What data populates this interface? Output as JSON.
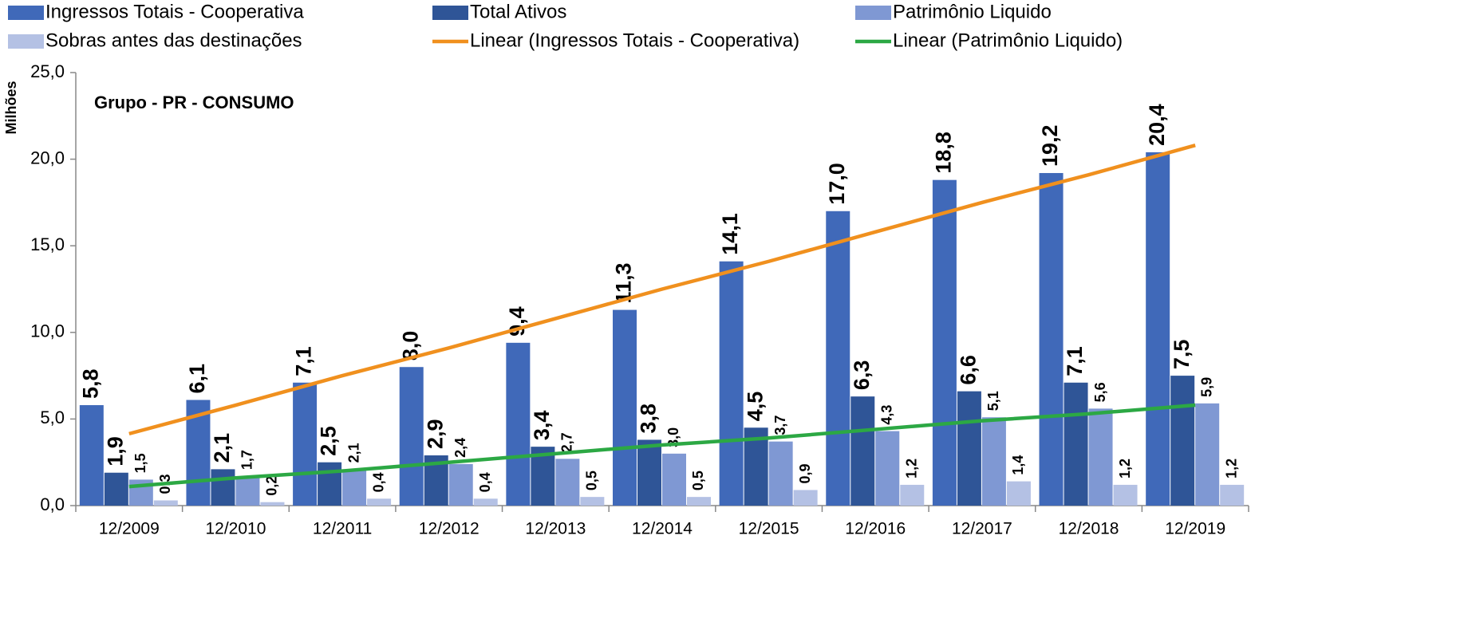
{
  "chart_data": {
    "type": "bar",
    "title": "Grupo - PR - CONSUMO",
    "y_label": "Milhões",
    "categories": [
      "12/2009",
      "12/2010",
      "12/2011",
      "12/2012",
      "12/2013",
      "12/2014",
      "12/2015",
      "12/2016",
      "12/2017",
      "12/2018",
      "12/2019"
    ],
    "series": [
      {
        "name": "Ingressos Totais - Cooperativa",
        "color": "#4069b9",
        "type": "bar",
        "values": [
          5.8,
          6.1,
          7.1,
          8.0,
          9.4,
          11.3,
          14.1,
          17.0,
          18.8,
          19.2,
          20.4
        ],
        "value_labels": [
          "5,8",
          "6,1",
          "7,1",
          "8,0",
          "9,4",
          "11,3",
          "14,1",
          "17,0",
          "18,8",
          "19,2",
          "20,4"
        ]
      },
      {
        "name": "Total Ativos",
        "color": "#2f5597",
        "type": "bar",
        "values": [
          1.9,
          2.1,
          2.5,
          2.9,
          3.4,
          3.8,
          4.5,
          6.3,
          6.6,
          7.1,
          7.5
        ],
        "value_labels": [
          "1,9",
          "2,1",
          "2,5",
          "2,9",
          "3,4",
          "3,8",
          "4,5",
          "6,3",
          "6,6",
          "7,1",
          "7,5"
        ]
      },
      {
        "name": "Patrimônio Liquido",
        "color": "#7f98d3",
        "type": "bar",
        "values": [
          1.5,
          1.7,
          2.1,
          2.4,
          2.7,
          3.0,
          3.7,
          4.3,
          5.1,
          5.6,
          5.9
        ],
        "value_labels": [
          "1,5",
          "1,7",
          "2,1",
          "2,4",
          "2,7",
          "3,0",
          "3,7",
          "4,3",
          "5,1",
          "5,6",
          "5,9"
        ]
      },
      {
        "name": "Sobras antes das destinações",
        "color": "#b4c1e4",
        "type": "bar",
        "values": [
          0.3,
          0.2,
          0.4,
          0.4,
          0.5,
          0.5,
          0.9,
          1.2,
          1.4,
          1.2,
          1.2
        ],
        "value_labels": [
          "0,3",
          "0,2",
          "0,4",
          "0,4",
          "0,5",
          "0,5",
          "0,9",
          "1,2",
          "1,4",
          "1,2",
          "1,2"
        ]
      },
      {
        "name": "Linear (Ingressos Totais - Cooperativa)",
        "color": "#f0901e",
        "type": "line",
        "values": [
          4.15,
          5.8,
          7.5,
          9.1,
          10.8,
          12.5,
          14.1,
          15.8,
          17.5,
          19.1,
          20.8
        ]
      },
      {
        "name": "Linear (Patrimônio Liquido)",
        "color": "#2ca844",
        "type": "line",
        "values": [
          1.1,
          1.6,
          2.0,
          2.5,
          3.0,
          3.5,
          3.9,
          4.4,
          4.9,
          5.3,
          5.8
        ]
      }
    ],
    "ylim": [
      0,
      25
    ],
    "yticks": [
      {
        "value": 0,
        "label": "0,0"
      },
      {
        "value": 5,
        "label": "5,0"
      },
      {
        "value": 10,
        "label": "10,0"
      },
      {
        "value": 15,
        "label": "15,0"
      },
      {
        "value": 20,
        "label": "20,0"
      },
      {
        "value": 25,
        "label": "25,0"
      }
    ],
    "grid": false
  }
}
